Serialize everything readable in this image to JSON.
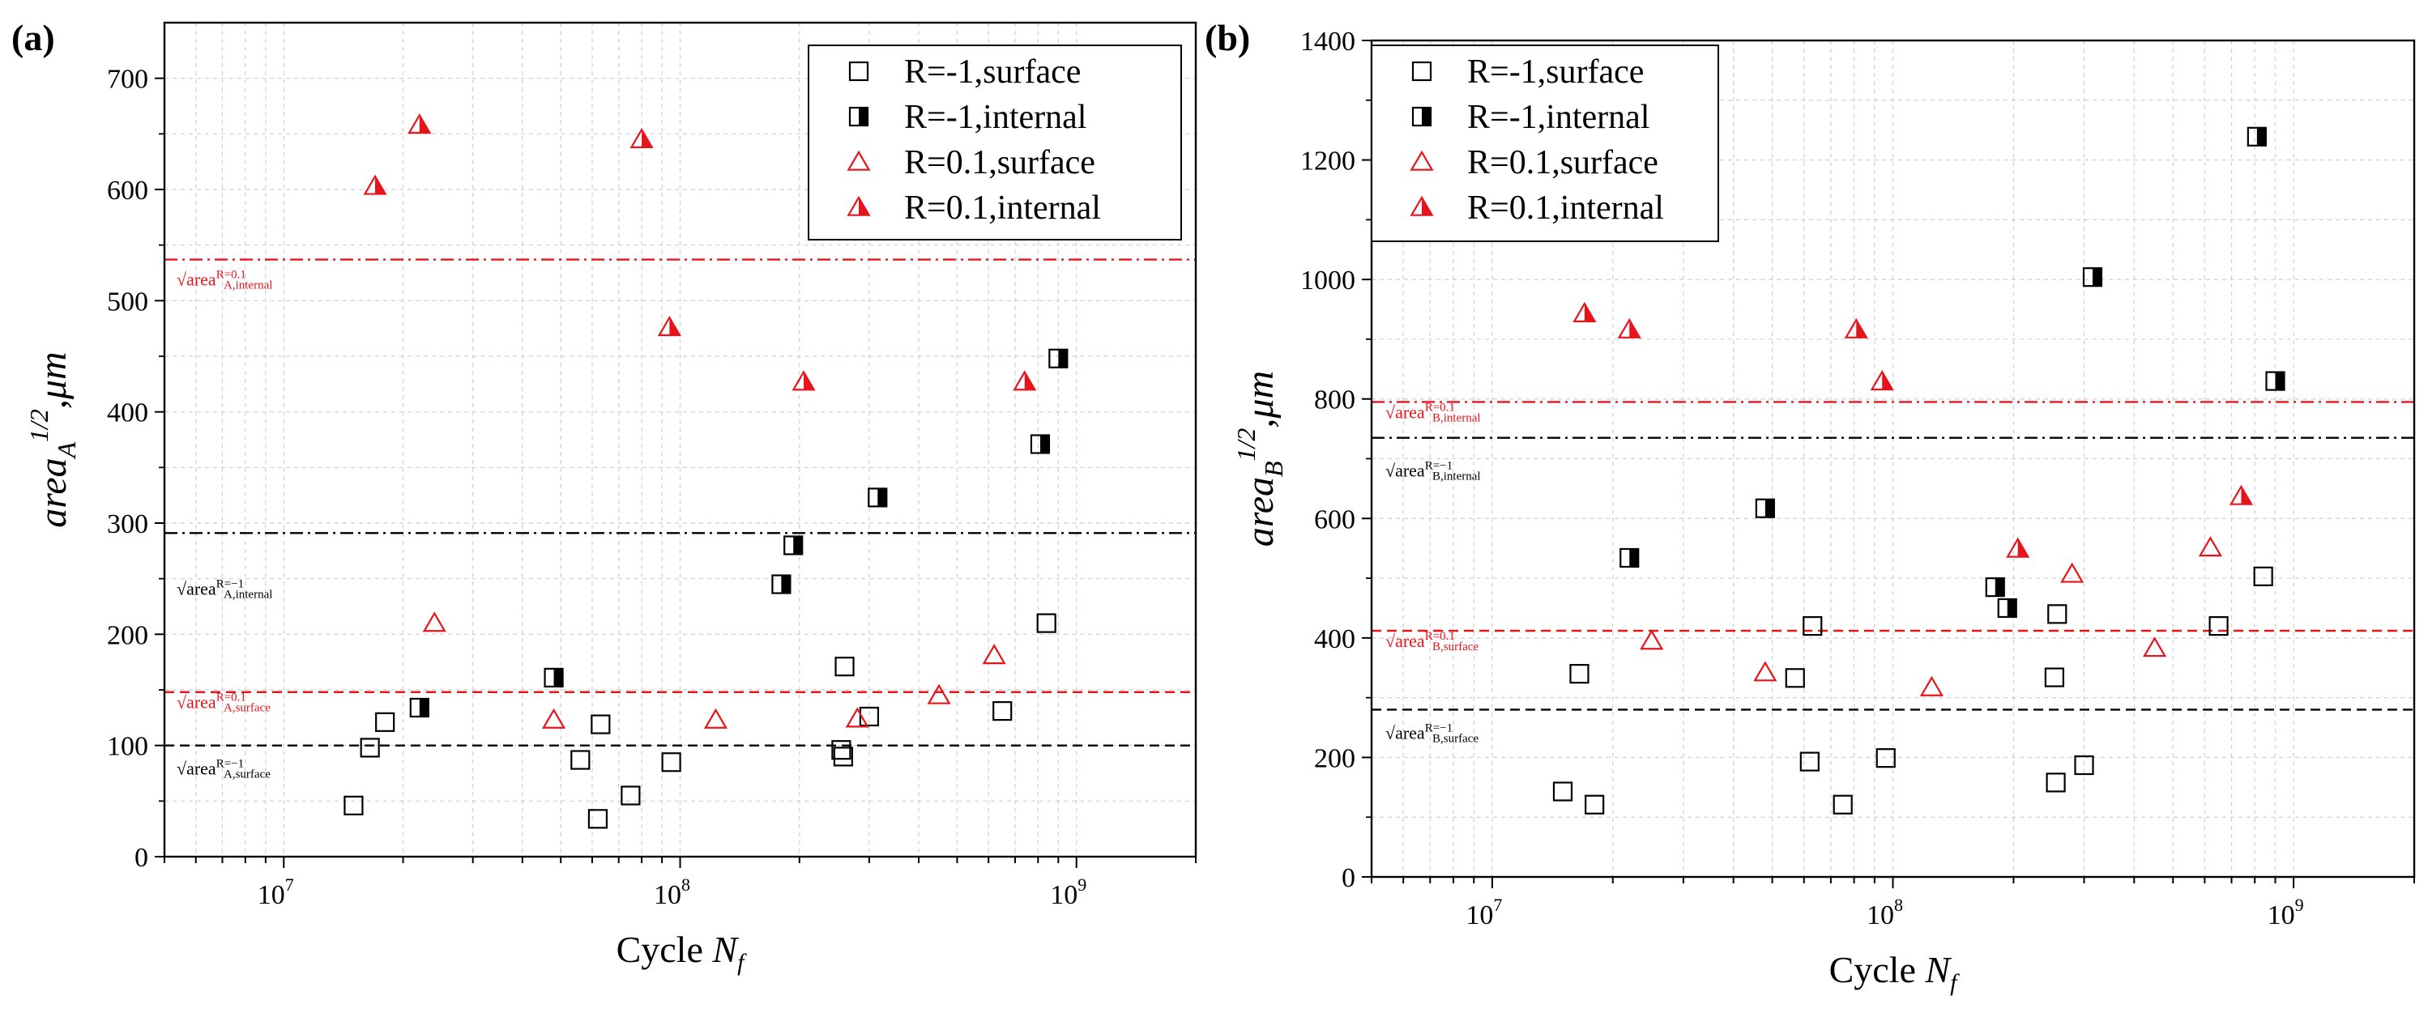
{
  "chart_data": [
    {
      "panel_label": "(a)",
      "type": "scatter",
      "x_scale": "log",
      "xlim": [
        5000000,
        2000000000
      ],
      "ylim": [
        0,
        750
      ],
      "xlabel": "Cycle N_f",
      "xlabel_parts": {
        "base": "Cycle ",
        "italic": "N",
        "sub": "f"
      },
      "ylabel": "area_A^(1/2),μm",
      "ylabel_parts": {
        "base": "area",
        "sub": "A",
        "sup": "1/2",
        "unit": ",μm"
      },
      "x_ticks": [
        {
          "value": 10000000,
          "base": "10",
          "exp": "7"
        },
        {
          "value": 100000000,
          "base": "10",
          "exp": "8"
        },
        {
          "value": 1000000000,
          "base": "10",
          "exp": "9"
        }
      ],
      "y_ticks": [
        0,
        100,
        200,
        300,
        400,
        500,
        600,
        700
      ],
      "legend": [
        {
          "series": "R=-1,surface",
          "label": "R=-1,surface"
        },
        {
          "series": "R=-1,internal",
          "label": "R=-1,internal"
        },
        {
          "series": "R=0.1,surface",
          "label": "R=0.1,surface"
        },
        {
          "series": "R=0.1,internal",
          "label": "R=0.1,internal"
        }
      ],
      "legend_position": "top-right",
      "series": [
        {
          "name": "R=-1,surface",
          "marker": "open-square",
          "color": "#000000",
          "points": [
            [
              15000000,
              46
            ],
            [
              16500000,
              98
            ],
            [
              18000000,
              121
            ],
            [
              56000000,
              87
            ],
            [
              62000000,
              34
            ],
            [
              63000000,
              119
            ],
            [
              75000000,
              55
            ],
            [
              95000000,
              85
            ],
            [
              255000000,
              96
            ],
            [
              258000000,
              90
            ],
            [
              260000000,
              171
            ],
            [
              300000000,
              126
            ],
            [
              650000000,
              131
            ],
            [
              840000000,
              210
            ]
          ]
        },
        {
          "name": "R=-1,internal",
          "marker": "half-square",
          "color": "#000000",
          "points": [
            [
              22000000,
              134
            ],
            [
              48000000,
              161
            ],
            [
              180000000,
              245
            ],
            [
              193000000,
              280
            ],
            [
              315000000,
              323
            ],
            [
              810000000,
              371
            ],
            [
              900000000,
              448
            ]
          ]
        },
        {
          "name": "R=0.1,surface",
          "marker": "open-triangle",
          "color": "#e8141c",
          "points": [
            [
              24000000,
              210
            ],
            [
              48000000,
              123
            ],
            [
              123000000,
              123
            ],
            [
              280000000,
              124
            ],
            [
              450000000,
              145
            ],
            [
              620000000,
              181
            ]
          ]
        },
        {
          "name": "R=0.1,internal",
          "marker": "half-triangle",
          "color": "#e8141c",
          "points": [
            [
              17000000,
              603
            ],
            [
              22000000,
              658
            ],
            [
              80000000,
              645
            ],
            [
              94000000,
              476
            ],
            [
              205000000,
              427
            ],
            [
              740000000,
              427
            ]
          ]
        }
      ],
      "reference_lines": [
        {
          "value": 537,
          "style": "dashdot",
          "color": "#e8141c",
          "label_base": "√area",
          "label_sub": "A,internal",
          "label_sup": "R=0.1"
        },
        {
          "value": 291,
          "style": "dashdot",
          "color": "#000000",
          "label_base": "√area",
          "label_sub": "A,internal",
          "label_sup": "R=−1"
        },
        {
          "value": 148,
          "style": "dashed",
          "color": "#e8141c",
          "label_base": "√area",
          "label_sub": "A,surface",
          "label_sup": "R=0.1"
        },
        {
          "value": 100,
          "style": "dashed",
          "color": "#000000",
          "label_base": "√area",
          "label_sub": "A,surface",
          "label_sup": "R=−1"
        }
      ]
    },
    {
      "panel_label": "(b)",
      "type": "scatter",
      "x_scale": "log",
      "xlim": [
        5000000,
        2000000000
      ],
      "ylim": [
        0,
        1400
      ],
      "xlabel": "Cycle N_f",
      "xlabel_parts": {
        "base": "Cycle ",
        "italic": "N",
        "sub": "f"
      },
      "ylabel": "area_B^(1/2),μm",
      "ylabel_parts": {
        "base": "area",
        "sub": "B",
        "sup": "1/2",
        "unit": ",μm"
      },
      "x_ticks": [
        {
          "value": 10000000,
          "base": "10",
          "exp": "7"
        },
        {
          "value": 100000000,
          "base": "10",
          "exp": "8"
        },
        {
          "value": 1000000000,
          "base": "10",
          "exp": "9"
        }
      ],
      "y_ticks": [
        0,
        200,
        400,
        600,
        800,
        1000,
        1200,
        1400
      ],
      "legend": [
        {
          "series": "R=-1,surface",
          "label": "R=-1,surface"
        },
        {
          "series": "R=-1,internal",
          "label": "R=-1,internal"
        },
        {
          "series": "R=0.1,surface",
          "label": "R=0.1,surface"
        },
        {
          "series": "R=0.1,internal",
          "label": "R=0.1,internal"
        }
      ],
      "legend_position": "top-left",
      "series": [
        {
          "name": "R=-1,surface",
          "marker": "open-square",
          "color": "#000000",
          "points": [
            [
              15000000,
              143
            ],
            [
              16500000,
              340
            ],
            [
              18000000,
              121
            ],
            [
              57000000,
              333
            ],
            [
              62000000,
              193
            ],
            [
              63000000,
              420
            ],
            [
              75000000,
              121
            ],
            [
              96000000,
              199
            ],
            [
              253000000,
              334
            ],
            [
              255000000,
              158
            ],
            [
              257000000,
              440
            ],
            [
              300000000,
              187
            ],
            [
              650000000,
              420
            ],
            [
              840000000,
              503
            ]
          ]
        },
        {
          "name": "R=-1,internal",
          "marker": "half-square",
          "color": "#000000",
          "points": [
            [
              22000000,
              534
            ],
            [
              48000000,
              617
            ],
            [
              180000000,
              485
            ],
            [
              193000000,
              450
            ],
            [
              315000000,
              1004
            ],
            [
              810000000,
              1239
            ],
            [
              900000000,
              830
            ]
          ]
        },
        {
          "name": "R=0.1,surface",
          "marker": "open-triangle",
          "color": "#e8141c",
          "points": [
            [
              25000000,
              395
            ],
            [
              48000000,
              342
            ],
            [
              125000000,
              317
            ],
            [
              280000000,
              507
            ],
            [
              450000000,
              383
            ],
            [
              620000000,
              551
            ]
          ]
        },
        {
          "name": "R=0.1,internal",
          "marker": "half-triangle",
          "color": "#e8141c",
          "points": [
            [
              17000000,
              943
            ],
            [
              22000000,
              916
            ],
            [
              81000000,
              916
            ],
            [
              94000000,
              829
            ],
            [
              205000000,
              549
            ],
            [
              740000000,
              637
            ]
          ]
        }
      ],
      "reference_lines": [
        {
          "value": 795,
          "style": "dashdot",
          "color": "#e8141c",
          "label_base": "√area",
          "label_sub": "B,internal",
          "label_sup": "R=0.1"
        },
        {
          "value": 735,
          "style": "dashdot",
          "color": "#000000",
          "label_base": "√area",
          "label_sub": "B,internal",
          "label_sup": "R=−1"
        },
        {
          "value": 412,
          "style": "dashed",
          "color": "#e8141c",
          "label_base": "√area",
          "label_sub": "B,surface",
          "label_sup": "R=0.1"
        },
        {
          "value": 280,
          "style": "dashed",
          "color": "#000000",
          "label_base": "√area",
          "label_sub": "B,surface",
          "label_sup": "R=−1"
        }
      ]
    }
  ]
}
